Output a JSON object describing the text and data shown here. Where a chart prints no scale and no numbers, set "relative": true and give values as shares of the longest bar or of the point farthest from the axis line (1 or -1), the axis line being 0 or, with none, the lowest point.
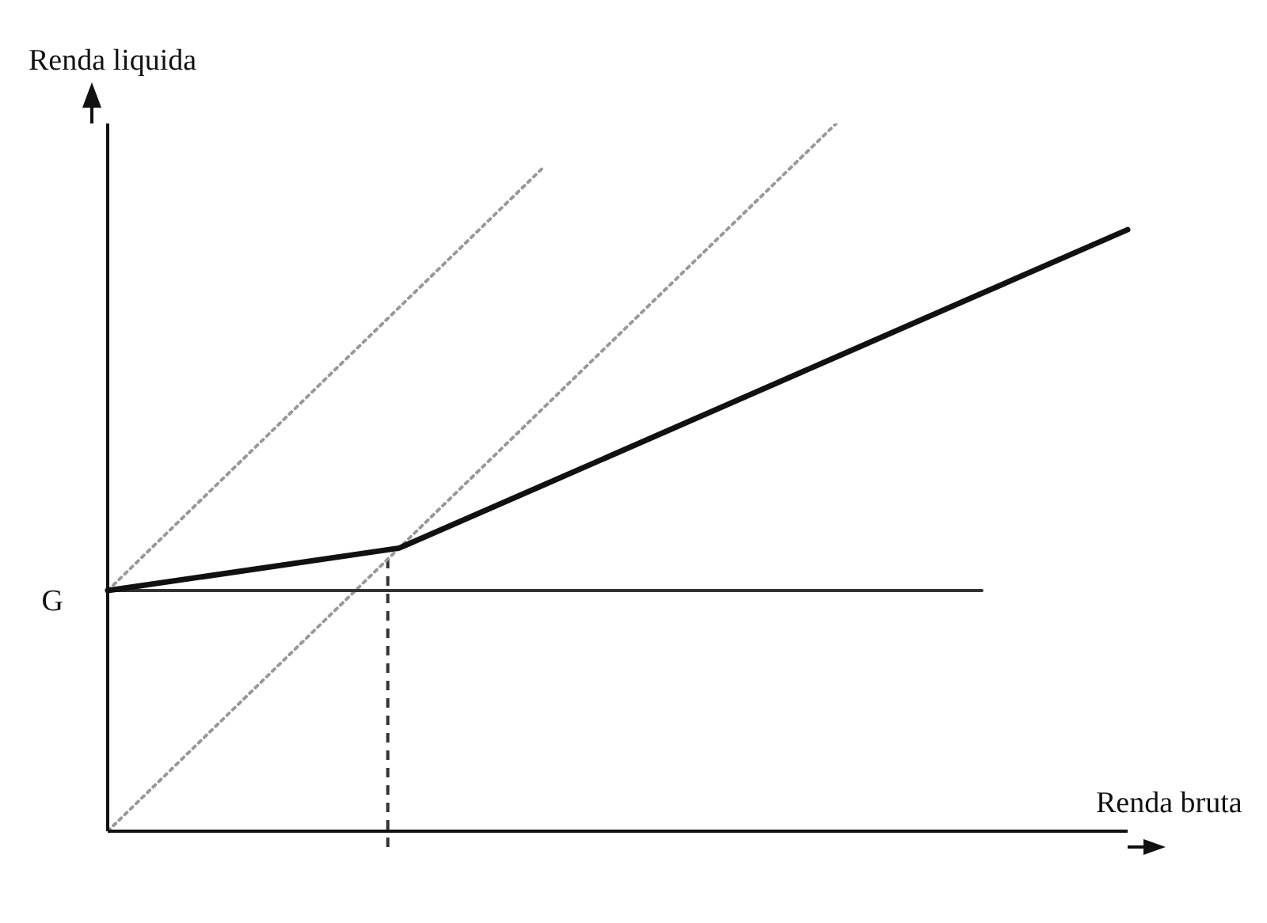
{
  "chart_data": {
    "type": "line",
    "relative": true,
    "xlabel": "Renda bruta",
    "ylabel": "Renda liquida",
    "marker": "none",
    "annotations": [
      "G"
    ],
    "categories": [
      null,
      null,
      null,
      null,
      null,
      null,
      null,
      null
    ],
    "series": [
      {
        "color": "#999999",
        "line_style": "dotted",
        "values": [
          0.34,
          0.54,
          0.74,
          0.94,
          null,
          null,
          null,
          null
        ]
      },
      {
        "color": "#999999",
        "line_style": "dotted",
        "values": [
          0,
          0.2,
          0.4,
          0.6,
          0.8,
          1,
          null,
          null
        ]
      },
      {
        "color": "#333333",
        "line_style": "solid",
        "values": [
          0.34,
          0.34,
          0.34,
          0.34,
          0.34,
          0.34,
          0.34,
          null
        ]
      },
      {
        "color": "#111111",
        "line_style": "solid",
        "values": [
          0.34,
          0.37,
          0.4,
          0.49,
          0.58,
          0.67,
          0.76,
          0.85
        ]
      }
    ]
  }
}
